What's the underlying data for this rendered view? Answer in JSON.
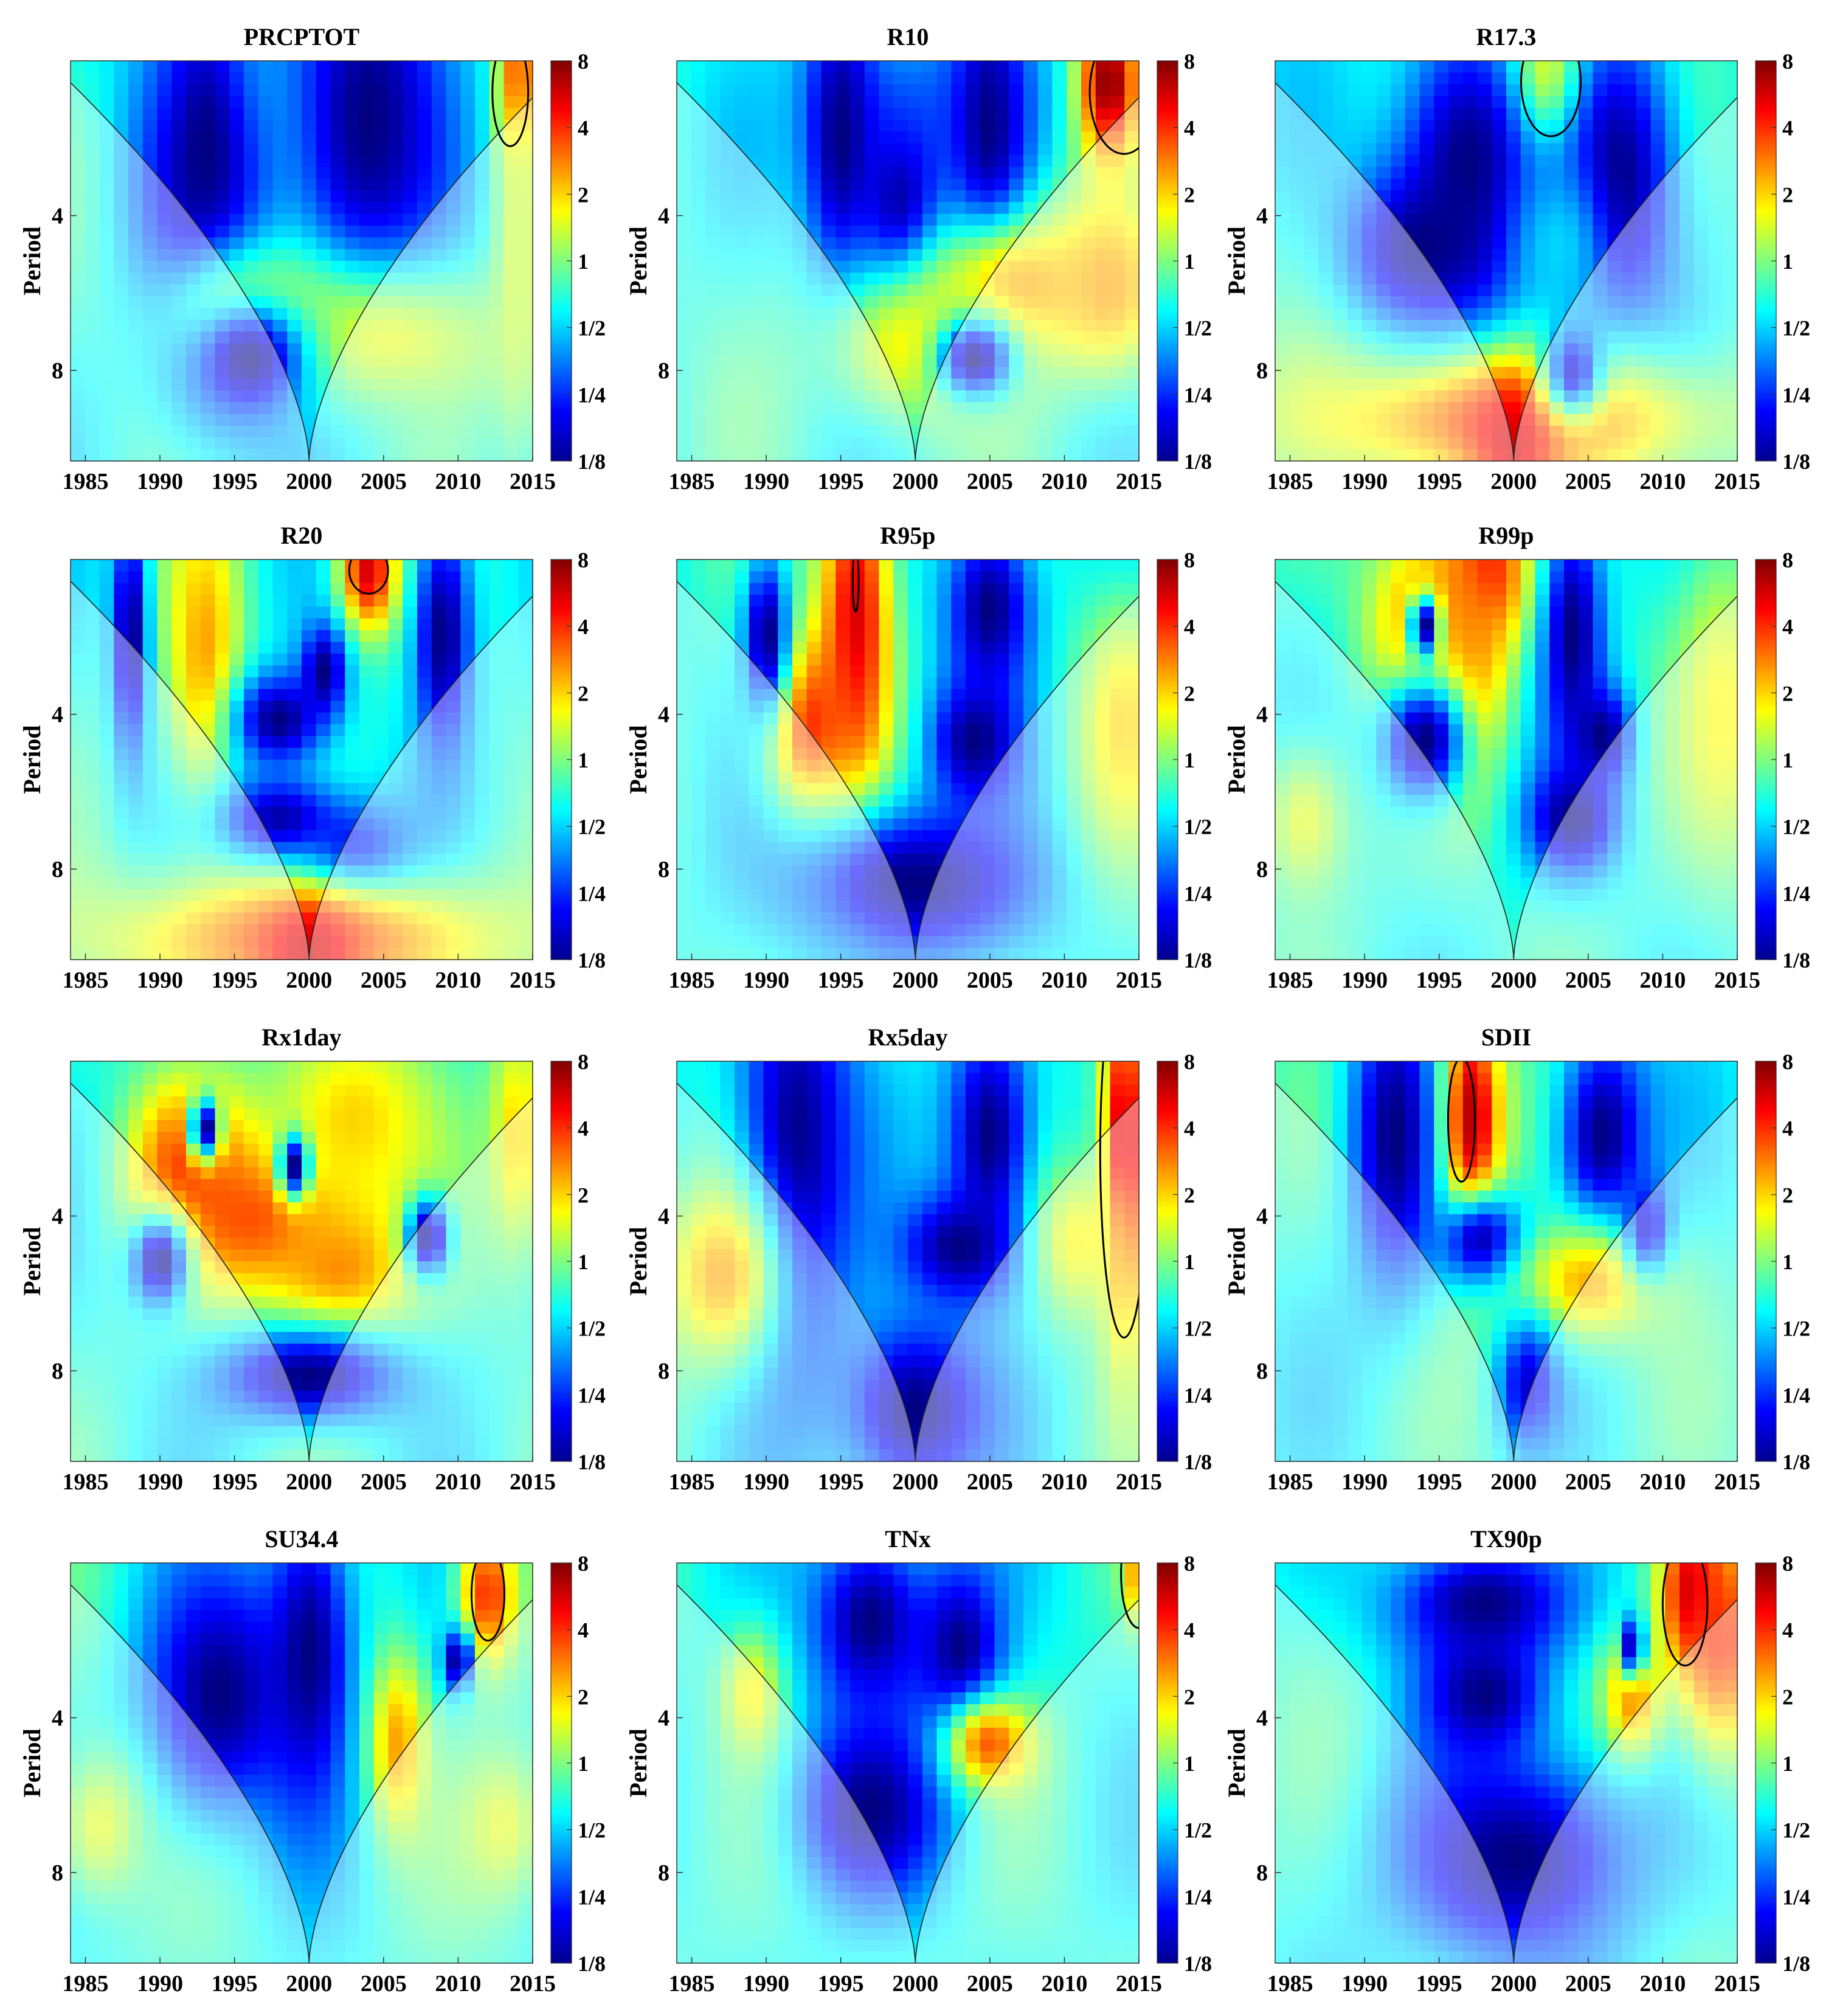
{
  "chart_data": {
    "type": "heatmap",
    "subtype": "wavelet-power-spectrum",
    "ylabel": "Period",
    "y_ticks": [
      "4",
      "8"
    ],
    "y_scale": "log2",
    "y_range_periods": [
      2,
      12
    ],
    "x_ticks": [
      "1985",
      "1990",
      "1995",
      "2000",
      "2005",
      "2010",
      "2015"
    ],
    "x_range": [
      1984,
      2015
    ],
    "colorbar": {
      "labels": [
        "8",
        "4",
        "2",
        "1",
        "1/2",
        "1/4",
        "1/8"
      ],
      "scale": "log2",
      "range": [
        -3,
        3
      ],
      "colormap": "jet"
    },
    "cone_of_influence": true,
    "panels": [
      {
        "title": "PRCPTOT",
        "blobs": [
          [
            1994,
            2.2,
            3.5,
            0.5,
            1.0
          ],
          [
            1993,
            3.0,
            4.5,
            1.5,
            -3.0
          ],
          [
            2004,
            2.6,
            5.5,
            1.4,
            -3.0
          ],
          [
            2005,
            7.0,
            10,
            0.5,
            0.6
          ],
          [
            1996,
            6.3,
            5,
            0.4,
            1.0
          ],
          [
            1996,
            7.6,
            4,
            0.4,
            -3.0
          ],
          [
            2014,
            2.2,
            1.2,
            0.5,
            3.0
          ],
          [
            2014,
            4.6,
            1.5,
            1.4,
            0.5
          ]
        ],
        "contours": [
          [
            2013.5,
            2.3,
            1.2,
            0.35
          ]
        ]
      },
      {
        "title": "R10",
        "blobs": [
          [
            2001,
            2.4,
            8,
            0.6,
            -1.5
          ],
          [
            1995,
            2.8,
            2.5,
            1.0,
            -3.0
          ],
          [
            2005,
            2.8,
            2.5,
            1.0,
            -3.0
          ],
          [
            1999,
            4.0,
            3,
            0.6,
            -3.0
          ],
          [
            2007,
            5.5,
            6,
            0.45,
            1.3
          ],
          [
            2013,
            5.5,
            4,
            0.6,
            1.3
          ],
          [
            2000,
            7.2,
            6,
            0.5,
            0.8
          ],
          [
            2004,
            7.6,
            2.5,
            0.25,
            -3.0
          ],
          [
            2013,
            2.2,
            2,
            0.5,
            3.0
          ]
        ],
        "contours": [
          [
            2014,
            2.3,
            2.3,
            0.4
          ]
        ]
      },
      {
        "title": "R17.3",
        "blobs": [
          [
            2002,
            2.2,
            3,
            0.5,
            2.3
          ],
          [
            1997,
            3.2,
            5,
            1.0,
            -3.0
          ],
          [
            2007,
            3.4,
            4,
            1.0,
            -3.0
          ],
          [
            1994,
            4.6,
            5,
            0.5,
            -3.0
          ],
          [
            2003,
            4.6,
            3,
            0.5,
            -1.0
          ],
          [
            2000,
            10,
            14,
            0.45,
            1.8
          ],
          [
            2000,
            11,
            3,
            0.4,
            2.5
          ],
          [
            2004,
            8,
            2,
            0.3,
            -2.5
          ]
        ],
        "contours": [
          [
            2002.5,
            2.2,
            2.0,
            0.35
          ]
        ]
      },
      {
        "title": "R20",
        "blobs": [
          [
            1993,
            3.0,
            2.5,
            1.0,
            1.3
          ],
          [
            2004,
            2.1,
            2,
            0.4,
            2.5
          ],
          [
            1988,
            2.8,
            1.2,
            0.8,
            -3.0
          ],
          [
            2009,
            2.8,
            2,
            0.8,
            -3.0
          ],
          [
            1998,
            4.1,
            3,
            0.3,
            -3.0
          ],
          [
            2001,
            3.3,
            1.5,
            0.3,
            -3.0
          ],
          [
            1998,
            6.5,
            4,
            0.3,
            -3.0
          ],
          [
            2003,
            7.8,
            4,
            0.35,
            -3.0
          ],
          [
            2000,
            11,
            14,
            0.45,
            1.8
          ],
          [
            2000,
            11.5,
            3,
            0.3,
            2.5
          ]
        ],
        "contours": [
          [
            2004,
            2.1,
            1.3,
            0.15
          ]
        ]
      },
      {
        "title": "R95p",
        "blobs": [
          [
            1996,
            2.6,
            2.5,
            1.2,
            2.5
          ],
          [
            1993,
            4.2,
            3,
            0.6,
            2.0
          ],
          [
            2005,
            2.5,
            3,
            0.6,
            -3.0
          ],
          [
            1990,
            2.8,
            1.5,
            0.5,
            -3.0
          ],
          [
            2004,
            4.5,
            3,
            0.4,
            -3.0
          ],
          [
            2000,
            8.5,
            8,
            0.5,
            -3.0
          ],
          [
            2014,
            4.2,
            3,
            0.8,
            1.0
          ]
        ],
        "contours": [
          [
            1996,
            2.2,
            0.2,
            0.2
          ]
        ]
      },
      {
        "title": "R99p",
        "blobs": [
          [
            1998,
            2.1,
            3,
            0.5,
            2.5
          ],
          [
            1994,
            2.7,
            4,
            0.7,
            1.5
          ],
          [
            1997,
            3.3,
            2.5,
            0.8,
            1.5
          ],
          [
            1994,
            2.7,
            1,
            0.2,
            -3.0
          ],
          [
            2004,
            2.8,
            2,
            0.8,
            -3.0
          ],
          [
            1994,
            4.5,
            3,
            0.4,
            -3.0
          ],
          [
            2006,
            4.4,
            2,
            0.3,
            -3.0
          ],
          [
            2004,
            6.4,
            3,
            0.35,
            -3.0
          ],
          [
            1986,
            6.5,
            3,
            0.5,
            0.6
          ],
          [
            2014,
            4.0,
            3,
            1.0,
            0.8
          ]
        ],
        "contours": []
      },
      {
        "title": "Rx1day",
        "blobs": [
          [
            1992,
            3.2,
            4,
            0.6,
            2.0
          ],
          [
            1997,
            4.0,
            6,
            0.5,
            2.0
          ],
          [
            2002,
            5.0,
            5,
            0.5,
            1.5
          ],
          [
            2003,
            2.6,
            6,
            0.7,
            1.0
          ],
          [
            1993,
            2.7,
            1,
            0.2,
            -3.0
          ],
          [
            1999,
            3.2,
            1,
            0.2,
            -3.0
          ],
          [
            2008,
            4.4,
            1.5,
            0.25,
            -3.0
          ],
          [
            1990,
            4.9,
            2,
            0.3,
            -3.0
          ],
          [
            2000,
            8.2,
            6,
            0.3,
            -3.0
          ],
          [
            2014,
            2.8,
            2,
            0.8,
            1.0
          ]
        ],
        "contours": []
      },
      {
        "title": "Rx5day",
        "blobs": [
          [
            1992,
            3.0,
            4,
            1.5,
            -3.0
          ],
          [
            2005,
            2.8,
            3,
            0.8,
            -3.0
          ],
          [
            2000,
            9.5,
            5,
            0.6,
            -3.0
          ],
          [
            2003,
            4.6,
            4,
            0.35,
            -3.0
          ],
          [
            2014,
            3.0,
            1.6,
            1.2,
            2.8
          ],
          [
            1987,
            5.2,
            4,
            0.6,
            1.3
          ],
          [
            2011,
            4.5,
            3,
            0.5,
            0.8
          ]
        ],
        "contours": [
          [
            2014,
            3.0,
            1.6,
            1.2
          ]
        ]
      },
      {
        "title": "SDII",
        "blobs": [
          [
            1997,
            2.6,
            2.5,
            0.8,
            2.5
          ],
          [
            1997,
            2.6,
            1,
            0.4,
            3.0
          ],
          [
            1992,
            2.8,
            3,
            1.0,
            -3.0
          ],
          [
            2006,
            2.8,
            3,
            0.7,
            -3.0
          ],
          [
            1998,
            4.5,
            3,
            0.3,
            -3.0
          ],
          [
            2005,
            5.4,
            5,
            0.4,
            1.2
          ],
          [
            2001,
            8.5,
            2,
            0.4,
            -2.5
          ],
          [
            2009,
            4.2,
            1.5,
            0.3,
            -2.5
          ]
        ],
        "contours": [
          [
            1996.5,
            2.6,
            0.9,
            0.4
          ]
        ]
      },
      {
        "title": "SU34.4",
        "blobs": [
          [
            1994,
            3.6,
            5,
            0.8,
            -3.0
          ],
          [
            2000,
            3.0,
            3,
            1.0,
            -3.0
          ],
          [
            2006,
            4.5,
            2,
            0.6,
            1.3
          ],
          [
            2012,
            2.3,
            2,
            0.5,
            2.0
          ],
          [
            2010,
            3.1,
            1,
            0.2,
            -3.0
          ],
          [
            1986,
            6.5,
            3,
            0.5,
            0.6
          ],
          [
            2013,
            6.5,
            3,
            0.5,
            0.6
          ]
        ],
        "contours": [
          [
            2012,
            2.3,
            1.1,
            0.3
          ]
        ]
      },
      {
        "title": "TNx",
        "blobs": [
          [
            1997,
            2.6,
            4,
            0.6,
            -3.0
          ],
          [
            2003,
            3.0,
            3,
            0.6,
            -3.0
          ],
          [
            1997,
            6.0,
            5,
            0.6,
            -3.0
          ],
          [
            2005,
            4.5,
            3,
            0.3,
            1.7
          ],
          [
            1989,
            3.6,
            2,
            0.4,
            0.8
          ],
          [
            2015,
            2.1,
            1,
            0.3,
            1.5
          ]
        ],
        "contours": [
          [
            2015,
            2.1,
            1.2,
            0.35
          ]
        ]
      },
      {
        "title": "TX90p",
        "blobs": [
          [
            2012,
            2.3,
            2,
            0.5,
            3.0
          ],
          [
            1998,
            2.4,
            6,
            0.4,
            -3.0
          ],
          [
            1998,
            3.6,
            4,
            0.4,
            -3.0
          ],
          [
            2000,
            7.5,
            8,
            0.7,
            -3.0
          ],
          [
            2008,
            3.6,
            2,
            0.4,
            1.5
          ],
          [
            2008,
            2.9,
            0.8,
            0.2,
            -3.0
          ],
          [
            2014,
            2.8,
            3,
            0.8,
            2.0
          ]
        ],
        "contours": [
          [
            2011.5,
            2.4,
            1.5,
            0.4
          ]
        ]
      }
    ]
  }
}
